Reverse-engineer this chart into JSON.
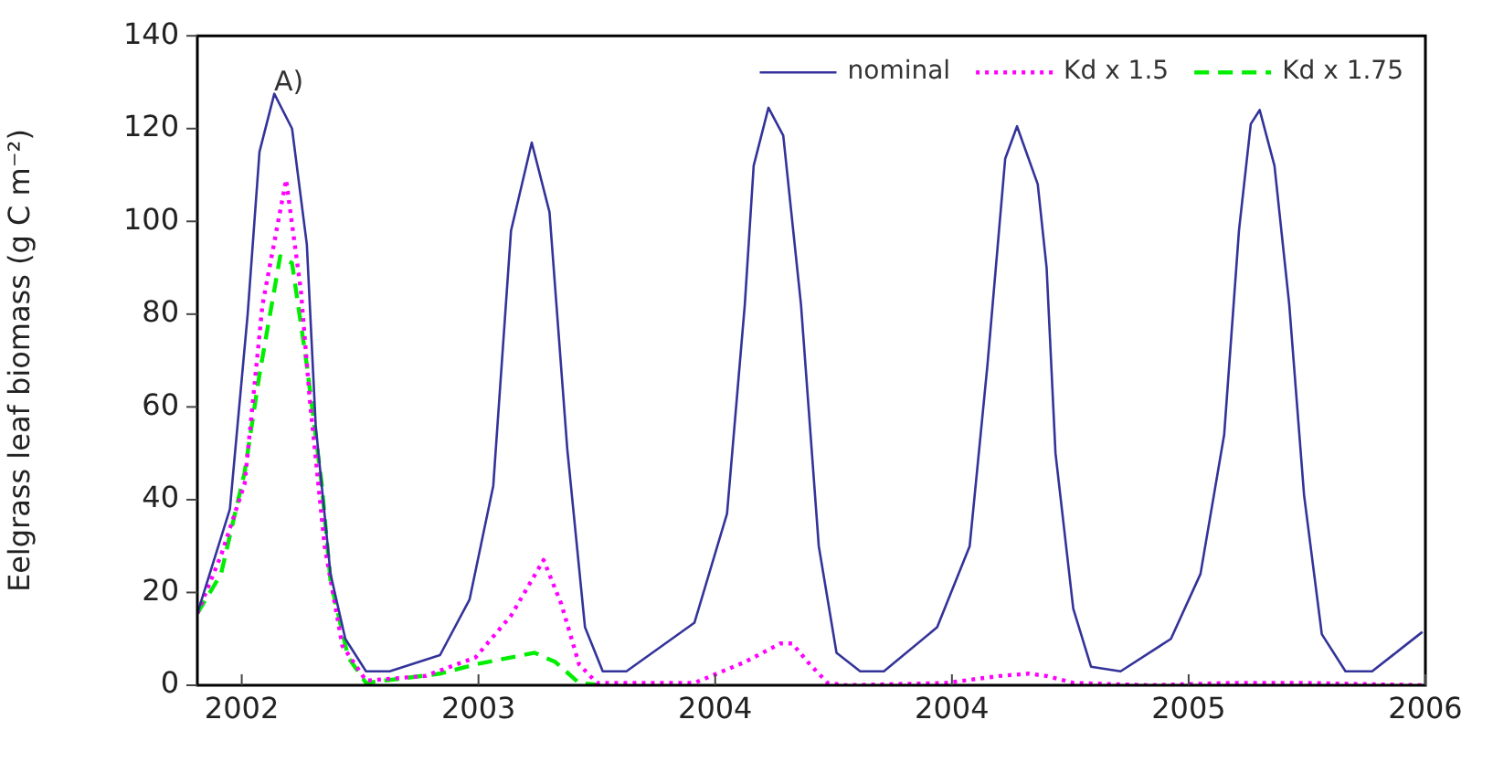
{
  "chart_data": {
    "type": "line",
    "ylabel": "Eelgrass leaf biomass (g C m⁻²)",
    "xlim": [
      2001.85,
      2006
    ],
    "xticks": [
      2002,
      {
        "value": 2002.8,
        "label": "2003"
      },
      {
        "value": 2003.6,
        "label": "2004"
      },
      {
        "value": 2004.4,
        "label": "2004"
      },
      {
        "value": 2005.2,
        "label": "2005"
      },
      2006
    ],
    "ylim": [
      0,
      140
    ],
    "yticks": [
      0,
      20,
      40,
      60,
      80,
      100,
      120,
      140
    ],
    "grid": false,
    "legend": "top right",
    "marker": "none",
    "annotations": [
      "A)"
    ],
    "series": [
      {
        "name": "nominal",
        "color": "#33339a",
        "line_style": "solid",
        "x": [
          2001.85,
          2001.96,
          2002.02,
          2002.06,
          2002.11,
          2002.17,
          2002.22,
          2002.25,
          2002.3,
          2002.35,
          2002.42,
          2002.5,
          2002.67,
          2002.77,
          2002.85,
          2002.91,
          2002.98,
          2003.04,
          2003.1,
          2003.16,
          2003.22,
          2003.3,
          2003.53,
          2003.64,
          2003.7,
          2003.73,
          2003.78,
          2003.83,
          2003.89,
          2003.95,
          2004.01,
          2004.09,
          2004.17,
          2004.35,
          2004.46,
          2004.52,
          2004.58,
          2004.62,
          2004.69,
          2004.72,
          2004.75,
          2004.81,
          2004.87,
          2004.97,
          2005.14,
          2005.24,
          2005.32,
          2005.37,
          2005.41,
          2005.44,
          2005.49,
          2005.54,
          2005.59,
          2005.65,
          2005.73,
          2005.82,
          2005.92,
          2005.99
        ],
        "values": [
          15.5,
          38,
          80,
          115,
          127.5,
          120,
          95,
          56,
          24,
          10,
          3,
          3,
          6.5,
          18.5,
          43,
          98,
          117,
          102,
          51,
          12.5,
          3,
          3,
          13.5,
          37,
          82,
          112,
          124.5,
          118.5,
          82,
          30,
          7,
          3,
          3,
          12.5,
          30,
          69,
          113.5,
          120.5,
          108,
          90,
          50,
          16.5,
          4,
          3,
          10,
          24,
          54,
          98,
          121,
          124,
          112,
          82,
          41,
          11,
          3,
          3,
          8,
          11.5
        ]
      },
      {
        "name": "Kd x 1.5",
        "color": "#ff00ff",
        "line_style": "dotted",
        "x": [
          2001.85,
          2001.93,
          2002.01,
          2002.07,
          2002.15,
          2002.2,
          2002.23,
          2002.28,
          2002.34,
          2002.42,
          2002.62,
          2002.79,
          2002.91,
          2003.02,
          2003.08,
          2003.14,
          2003.2,
          2003.53,
          2003.7,
          2003.82,
          2003.86,
          2003.92,
          2003.98,
          2004.04,
          2004.38,
          2004.56,
          2004.66,
          2004.72,
          2004.81,
          2005.07,
          2005.34,
          2005.59,
          2006
        ],
        "values": [
          15.5,
          28,
          43.5,
          82,
          109,
          85,
          61.5,
          30,
          8.5,
          1,
          2,
          6,
          15,
          27,
          17.5,
          4.5,
          0.5,
          0.5,
          5,
          9,
          9,
          4.5,
          0.5,
          0,
          0.5,
          2,
          2.5,
          2,
          0.5,
          0,
          0.5,
          0.5,
          0
        ]
      },
      {
        "name": "Kd x 1.75",
        "color": "#00ee00",
        "line_style": "dashed",
        "x": [
          2001.85,
          2001.93,
          2002.01,
          2002.06,
          2002.13,
          2002.17,
          2002.22,
          2002.27,
          2002.3,
          2002.36,
          2002.42,
          2002.67,
          2002.79,
          2002.99,
          2003.06,
          2003.14,
          2003.22
        ],
        "values": [
          15.5,
          24,
          46,
          67,
          92.5,
          91,
          69,
          43.5,
          22.5,
          6,
          0.5,
          2.5,
          4.5,
          7,
          5,
          0.5,
          0
        ]
      }
    ]
  }
}
